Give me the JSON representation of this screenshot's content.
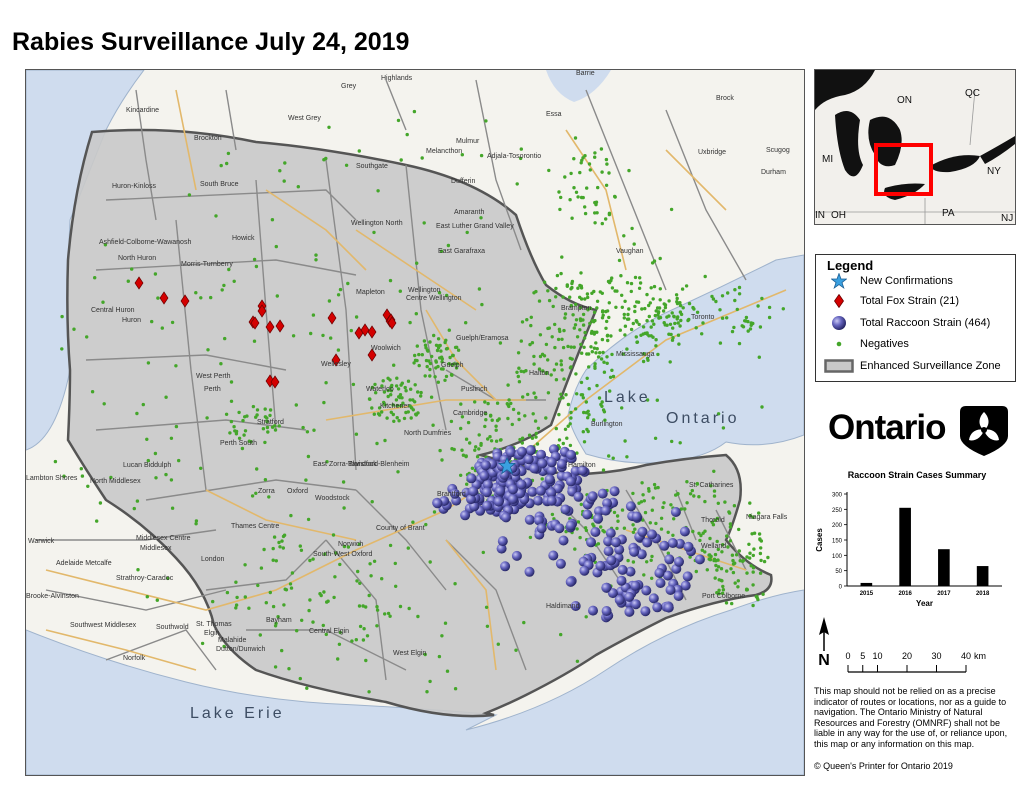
{
  "title": "Rabies Surveillance July 24, 2019",
  "map": {
    "water_labels": {
      "lake_ontario_1": "Lake",
      "lake_ontario_2": "Ontario",
      "lake_erie": "Lake Erie"
    },
    "place_labels": [
      "Highlands",
      "Grey",
      "Kincardine",
      "West Grey",
      "Barrie",
      "Brock",
      "Brockton",
      "Southgate",
      "Melancthon",
      "Adjala-Tosorontio",
      "Mulmur",
      "Essa",
      "Uxbridge",
      "Scugog",
      "Durham",
      "Huron-Kinloss",
      "South Bruce",
      "Dufferin",
      "Amaranth",
      "East Luther Grand Valley",
      "Wellington North",
      "Ashfield-Colborne-Wawanosh",
      "Howick",
      "East Garafraxa",
      "North Huron",
      "Morris-Turnberry",
      "Vaughan",
      "Central Huron",
      "Huron",
      "Mapleton",
      "Wellington",
      "Centre Wellington",
      "Brampton",
      "Toronto",
      "Guelph/Eramosa",
      "Woolwich",
      "Guelph",
      "Mississauga",
      "Halton",
      "Wellesley",
      "Waterloo",
      "Kitchener",
      "West Perth",
      "Perth",
      "Puslinch",
      "Cambridge",
      "North Dumfries",
      "Burlington",
      "Stratford",
      "Perth South",
      "Hamilton",
      "Lambton Shores",
      "Lucan Biddulph",
      "East Zorra-Tavistock",
      "Blandford-Blenheim",
      "North Middlesex",
      "Zorra",
      "Oxford",
      "Brantford",
      "St. Catharines",
      "Woodstock",
      "County of Brant",
      "Thorold",
      "Niagara Falls",
      "Thames Centre",
      "Warwick",
      "Middlesex Centre",
      "Middlesex",
      "Welland",
      "Norwich",
      "Port Colborne",
      "London",
      "Adelaide Metcalfe",
      "South-West Oxford",
      "Strathroy-Caradoc",
      "Haldimand",
      "Brooke-Alvinston",
      "Southwest Middlesex",
      "Southwold",
      "St. Thomas",
      "Elgin",
      "Malahide",
      "Bayham",
      "Central Elgin",
      "Dutton/Dunwich",
      "Norfolk",
      "West Elgin"
    ]
  },
  "inset": {
    "labels": [
      "ON",
      "QC",
      "MI",
      "NY",
      "IN",
      "OH",
      "PA",
      "NJ"
    ]
  },
  "legend": {
    "title": "Legend",
    "items": [
      {
        "label": "New Confirmations",
        "icon": "star-icon",
        "color": "#3aa0e0"
      },
      {
        "label": "Total Fox Strain (21)",
        "icon": "diamond-icon",
        "color": "#d40000"
      },
      {
        "label": "Total Raccoon Strain (464)",
        "icon": "sphere-icon",
        "color": "#4b4a9c"
      },
      {
        "label": "Negatives",
        "icon": "dot-icon",
        "color": "#44a62a"
      },
      {
        "label": "Enhanced Surveillance Zone",
        "icon": "zone-swatch-icon",
        "color": "#c8c8c8"
      }
    ]
  },
  "ontario_logo": {
    "wordmark": "Ontario",
    "icon": "trillium-icon"
  },
  "chart_data": {
    "type": "bar",
    "title": "Raccoon Strain Cases Summary",
    "categories": [
      "2015",
      "2016",
      "2017",
      "2018"
    ],
    "values": [
      10,
      255,
      120,
      65
    ],
    "xlabel": "Year",
    "ylabel": "Cases",
    "ylim": [
      0,
      300
    ],
    "yticks": [
      0,
      50,
      100,
      150,
      200,
      250,
      300
    ],
    "bar_color": "#000000"
  },
  "north_arrow": {
    "letter": "N"
  },
  "scale_bar": {
    "ticks": [
      "0",
      "5",
      "10",
      "20",
      "30",
      "40"
    ],
    "unit": "km"
  },
  "disclaimer": "This map should not be relied on as a precise indicator of routes or locations, nor as a guide to navigation. The Ontario Ministry of Natural Resources and Forestry (OMNRF) shall not be liable in any way for the use of, or reliance upon, this map or any information on this map.",
  "copyright": "© Queen's Printer for Ontario 2019"
}
